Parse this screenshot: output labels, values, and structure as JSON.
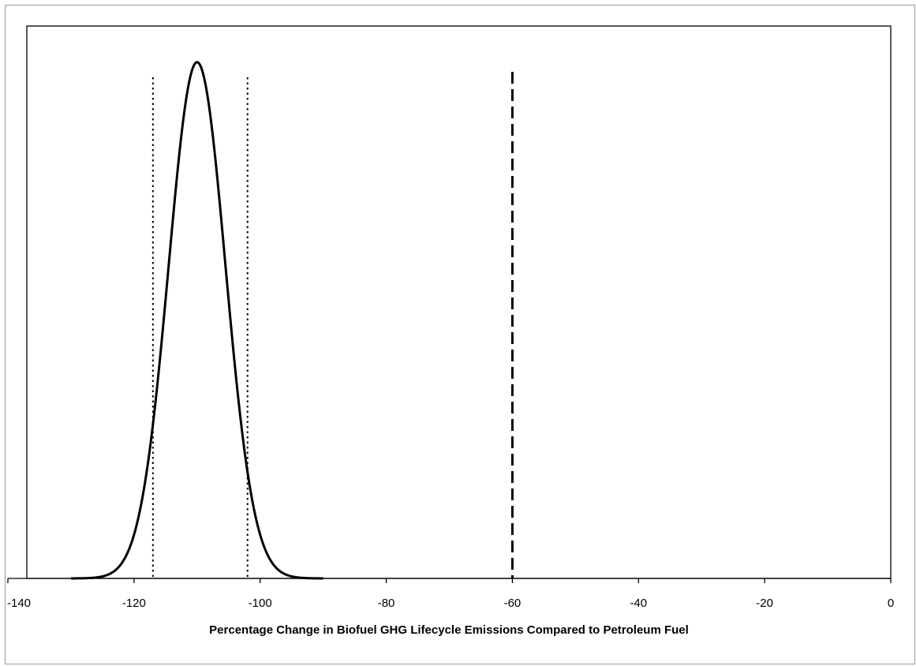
{
  "chart_data": {
    "type": "line",
    "title": "",
    "xlabel": "Percentage Change in Biofuel GHG Lifecycle Emissions Compared to Petroleum Fuel",
    "ylabel": "",
    "xlim": [
      -140,
      0
    ],
    "ylim": [
      0,
      1.07
    ],
    "x_ticks": [
      -140,
      -120,
      -100,
      -80,
      -60,
      -40,
      -20,
      0
    ],
    "grid": false,
    "legend": "none",
    "series": [
      {
        "style": "solid",
        "color": "#000000",
        "distribution": "normal",
        "mean": -110,
        "sd": 4.5,
        "peak": 1.0,
        "x_range": [
          -130,
          -90
        ]
      }
    ],
    "reference_lines": [
      {
        "x": -117,
        "style": "dotted",
        "color": "#000000"
      },
      {
        "x": -102,
        "style": "dotted",
        "color": "#000000"
      },
      {
        "x": -60,
        "style": "dashed",
        "color": "#000000"
      }
    ]
  }
}
